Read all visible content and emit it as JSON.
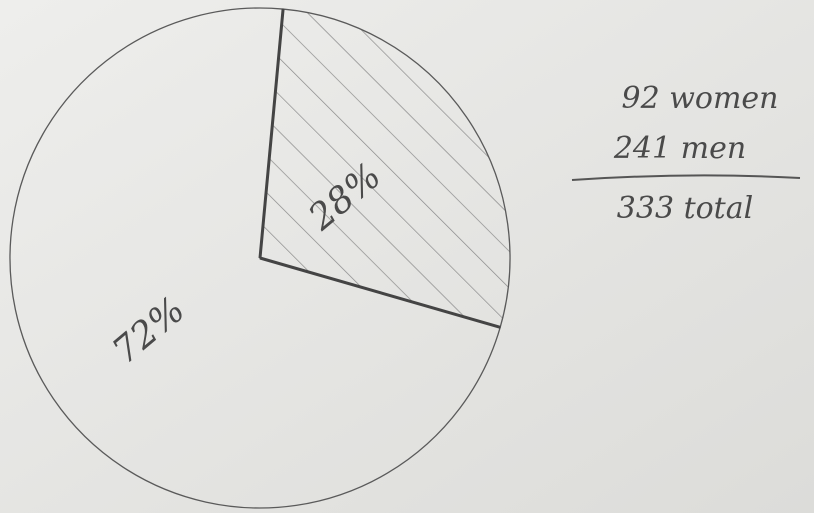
{
  "chart_data": {
    "type": "pie",
    "values": [
      28,
      72
    ],
    "value_labels": [
      "28%",
      "72%"
    ],
    "hatched": [
      true,
      false
    ],
    "color": "#5a5a5a",
    "annotations": [
      "92 women",
      "241 men",
      "333 total"
    ]
  }
}
